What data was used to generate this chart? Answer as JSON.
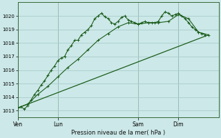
{
  "xlabel": "Pression niveau de la mer( hPa )",
  "background_color": "#cce8e8",
  "grid_color": "#aacccc",
  "line_color": "#1a5c1a",
  "ylim": [
    1012.5,
    1021.0
  ],
  "yticks": [
    1013,
    1014,
    1015,
    1016,
    1017,
    1018,
    1019,
    1020
  ],
  "xlim": [
    0,
    60
  ],
  "day_labels": [
    "Ven",
    "Lun",
    "Sam",
    "Dim"
  ],
  "day_positions": [
    0,
    12,
    36,
    48
  ],
  "series1_x": [
    0,
    1,
    2,
    3,
    4,
    5,
    6,
    7,
    8,
    9,
    10,
    11,
    12,
    13,
    14,
    15,
    16,
    17,
    18,
    19,
    20,
    21,
    22,
    23,
    24,
    25,
    26,
    27,
    28,
    29,
    30,
    31,
    32,
    33,
    34,
    35,
    36,
    37,
    38,
    39,
    40,
    41,
    42,
    43,
    44,
    45,
    46,
    47,
    48,
    49,
    50,
    51,
    52,
    53,
    54,
    55,
    56
  ],
  "series1_y": [
    1013.2,
    1013.3,
    1013.1,
    1013.4,
    1013.8,
    1014.2,
    1014.5,
    1014.9,
    1015.2,
    1015.6,
    1016.0,
    1016.3,
    1016.7,
    1016.9,
    1017.0,
    1017.5,
    1017.8,
    1018.2,
    1018.2,
    1018.6,
    1018.8,
    1019.0,
    1019.3,
    1019.8,
    1020.0,
    1020.2,
    1019.95,
    1019.8,
    1019.5,
    1019.4,
    1019.6,
    1019.9,
    1020.0,
    1019.7,
    1019.6,
    1019.5,
    1019.4,
    1019.5,
    1019.6,
    1019.5,
    1019.5,
    1019.5,
    1019.6,
    1020.0,
    1020.3,
    1020.2,
    1020.0,
    1020.1,
    1020.2,
    1020.0,
    1019.8,
    1019.5,
    1019.2,
    1019.0,
    1018.8,
    1018.7,
    1018.6
  ],
  "series2_x": [
    0,
    3,
    6,
    9,
    12,
    15,
    18,
    21,
    24,
    27,
    30,
    33,
    36,
    39,
    42,
    45,
    48,
    51,
    54,
    57
  ],
  "series2_y": [
    1013.2,
    1013.5,
    1014.2,
    1014.8,
    1015.5,
    1016.2,
    1016.8,
    1017.5,
    1018.2,
    1018.7,
    1019.2,
    1019.5,
    1019.4,
    1019.5,
    1019.5,
    1019.6,
    1020.1,
    1019.8,
    1018.8,
    1018.6
  ],
  "series3_x": [
    0,
    57
  ],
  "series3_y": [
    1013.2,
    1018.6
  ]
}
